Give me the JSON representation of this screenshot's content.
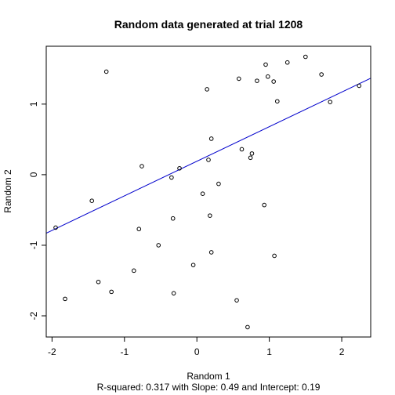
{
  "chart_data": {
    "type": "scatter",
    "title": "Random data generated at trial 1208",
    "xlabel": "Random 1",
    "ylabel": "Random 2",
    "subtitle": "R-squared: 0.317 with Slope: 0.49 and Intercept: 0.19",
    "xlim": [
      -2.08,
      2.4
    ],
    "ylim": [
      -2.3,
      1.82
    ],
    "xticks": [
      -2,
      -1,
      0,
      1,
      2
    ],
    "yticks": [
      -2,
      -1,
      0,
      1
    ],
    "xtick_labels": [
      "-2",
      "-1",
      "0",
      "1",
      "2"
    ],
    "ytick_labels": [
      "-2",
      "-1",
      "0",
      "1"
    ],
    "regression": {
      "slope": 0.49,
      "intercept": 0.19,
      "color": "#0000cc"
    },
    "points": [
      {
        "x": -1.95,
        "y": -0.75
      },
      {
        "x": -1.82,
        "y": -1.76
      },
      {
        "x": -1.45,
        "y": -0.37
      },
      {
        "x": -1.36,
        "y": -1.52
      },
      {
        "x": -1.25,
        "y": 1.46
      },
      {
        "x": -1.18,
        "y": -1.66
      },
      {
        "x": -0.87,
        "y": -1.36
      },
      {
        "x": -0.8,
        "y": -0.77
      },
      {
        "x": -0.76,
        "y": 0.12
      },
      {
        "x": -0.53,
        "y": -1.0
      },
      {
        "x": -0.35,
        "y": -0.04
      },
      {
        "x": -0.33,
        "y": -0.62
      },
      {
        "x": -0.32,
        "y": -1.68
      },
      {
        "x": -0.24,
        "y": 0.09
      },
      {
        "x": -0.05,
        "y": -1.28
      },
      {
        "x": 0.08,
        "y": -0.27
      },
      {
        "x": 0.14,
        "y": 1.21
      },
      {
        "x": 0.16,
        "y": 0.21
      },
      {
        "x": 0.18,
        "y": -0.58
      },
      {
        "x": 0.2,
        "y": 0.51
      },
      {
        "x": 0.2,
        "y": -1.1
      },
      {
        "x": 0.3,
        "y": -0.13
      },
      {
        "x": 0.55,
        "y": -1.78
      },
      {
        "x": 0.58,
        "y": 1.36
      },
      {
        "x": 0.62,
        "y": 0.36
      },
      {
        "x": 0.7,
        "y": -2.16
      },
      {
        "x": 0.74,
        "y": 0.24
      },
      {
        "x": 0.76,
        "y": 0.3
      },
      {
        "x": 0.83,
        "y": 1.33
      },
      {
        "x": 0.93,
        "y": -0.43
      },
      {
        "x": 0.95,
        "y": 1.56
      },
      {
        "x": 0.98,
        "y": 1.39
      },
      {
        "x": 1.06,
        "y": 1.32
      },
      {
        "x": 1.07,
        "y": -1.15
      },
      {
        "x": 1.11,
        "y": 1.04
      },
      {
        "x": 1.25,
        "y": 1.59
      },
      {
        "x": 1.5,
        "y": 1.67
      },
      {
        "x": 1.72,
        "y": 1.42
      },
      {
        "x": 1.84,
        "y": 1.03
      },
      {
        "x": 2.24,
        "y": 1.26
      }
    ]
  }
}
